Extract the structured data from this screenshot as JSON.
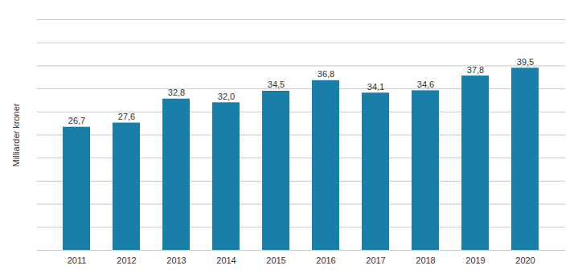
{
  "chart_data": {
    "type": "bar",
    "categories": [
      "2011",
      "2012",
      "2013",
      "2014",
      "2015",
      "2016",
      "2017",
      "2018",
      "2019",
      "2020"
    ],
    "values": [
      26.7,
      27.6,
      32.8,
      32.0,
      34.5,
      36.8,
      34.1,
      34.6,
      37.8,
      39.5
    ],
    "value_labels": [
      "26,7",
      "27,6",
      "32,8",
      "32,0",
      "34,5",
      "36,8",
      "34,1",
      "34,6",
      "37,8",
      "39,5"
    ],
    "color": "#1a7fa8",
    "ylabel": "Milliarder kroner",
    "ylim": [
      0,
      50
    ],
    "yticks": [
      0,
      5,
      10,
      15,
      20,
      25,
      30,
      35,
      40,
      45,
      50
    ],
    "grid": true,
    "data_labels": true,
    "tick_labels": "x"
  }
}
